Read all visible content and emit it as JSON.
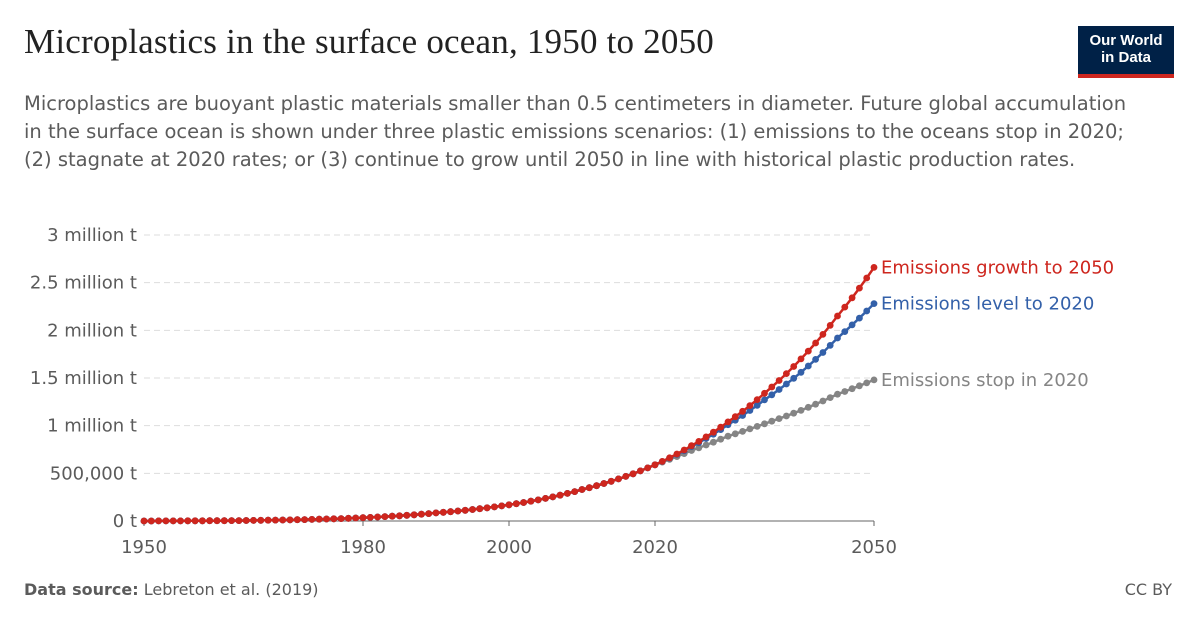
{
  "header": {
    "title": "Microplastics in the surface ocean, 1950 to 2050",
    "subtitle": "Microplastics are buoyant plastic materials smaller than 0.5 centimeters in diameter. Future global accumulation in the surface ocean is shown under three plastic emissions scenarios: (1) emissions to the oceans stop in 2020; (2) stagnate at 2020 rates; or (3) continue to grow until 2050 in line with historical plastic production rates.",
    "logo_line1": "Our World",
    "logo_line2": "in Data"
  },
  "footer": {
    "source_label": "Data source:",
    "source_text": "Lebreton et al. (2019)",
    "license": "CC BY"
  },
  "colors": {
    "growth": "#ce261e",
    "level": "#3360a9",
    "stop": "#858585",
    "grid": "#dddddd",
    "axis": "#666666"
  },
  "chart_data": {
    "type": "line",
    "title": "Microplastics in the surface ocean, 1950 to 2050",
    "xlim": [
      1950,
      2050
    ],
    "ylim": [
      0,
      3000000
    ],
    "grid": true,
    "x_ticks": [
      {
        "value": 1950,
        "label": "1950"
      },
      {
        "value": 1980,
        "label": "1980"
      },
      {
        "value": 2000,
        "label": "2000"
      },
      {
        "value": 2020,
        "label": "2020"
      },
      {
        "value": 2050,
        "label": "2050"
      }
    ],
    "y_ticks": [
      {
        "value": 0,
        "label": "0 t"
      },
      {
        "value": 500000,
        "label": "500,000 t"
      },
      {
        "value": 1000000,
        "label": "1 million t"
      },
      {
        "value": 1500000,
        "label": "1.5 million t"
      },
      {
        "value": 2000000,
        "label": "2 million t"
      },
      {
        "value": 2500000,
        "label": "2.5 million t"
      },
      {
        "value": 3000000,
        "label": "3 million t"
      }
    ],
    "series": [
      {
        "name": "Emissions stop in 2020",
        "color": "#858585",
        "anchors": [
          [
            1950,
            0
          ],
          [
            1960,
            3000
          ],
          [
            1970,
            12000
          ],
          [
            1980,
            35000
          ],
          [
            1990,
            85000
          ],
          [
            2000,
            170000
          ],
          [
            2010,
            330000
          ],
          [
            2020,
            590000
          ],
          [
            2025,
            740000
          ],
          [
            2030,
            890000
          ],
          [
            2035,
            1020000
          ],
          [
            2040,
            1160000
          ],
          [
            2045,
            1330000
          ],
          [
            2050,
            1480000
          ]
        ]
      },
      {
        "name": "Emissions level to 2020",
        "color": "#3360a9",
        "anchors": [
          [
            1950,
            0
          ],
          [
            1960,
            3000
          ],
          [
            1970,
            12000
          ],
          [
            1980,
            35000
          ],
          [
            1990,
            85000
          ],
          [
            2000,
            170000
          ],
          [
            2010,
            330000
          ],
          [
            2020,
            590000
          ],
          [
            2025,
            780000
          ],
          [
            2030,
            1010000
          ],
          [
            2035,
            1270000
          ],
          [
            2040,
            1560000
          ],
          [
            2045,
            1920000
          ],
          [
            2050,
            2280000
          ]
        ]
      },
      {
        "name": "Emissions growth to 2050",
        "color": "#ce261e",
        "anchors": [
          [
            1950,
            0
          ],
          [
            1960,
            3000
          ],
          [
            1970,
            12000
          ],
          [
            1980,
            35000
          ],
          [
            1990,
            85000
          ],
          [
            2000,
            170000
          ],
          [
            2010,
            330000
          ],
          [
            2020,
            590000
          ],
          [
            2025,
            790000
          ],
          [
            2030,
            1040000
          ],
          [
            2035,
            1340000
          ],
          [
            2040,
            1700000
          ],
          [
            2045,
            2150000
          ],
          [
            2050,
            2660000
          ]
        ]
      }
    ]
  }
}
